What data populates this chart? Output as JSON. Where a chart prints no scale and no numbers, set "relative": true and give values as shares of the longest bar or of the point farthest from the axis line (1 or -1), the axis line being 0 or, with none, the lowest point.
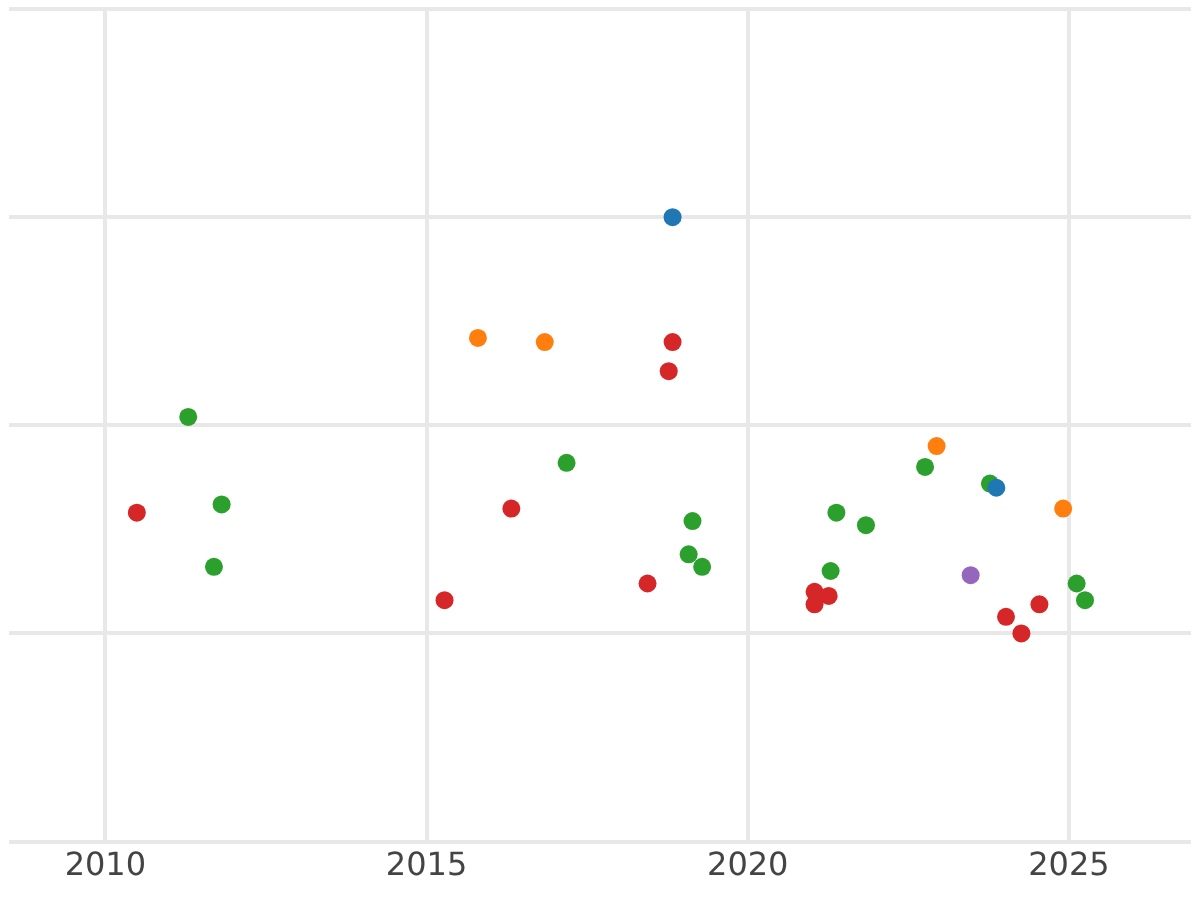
{
  "chart_data": {
    "type": "scatter",
    "relative": true,
    "grid": true,
    "legend": false,
    "marker": "circle",
    "xlim": [
      2008.5,
      2026.9
    ],
    "xticks": [
      2010,
      2015,
      2020,
      2025
    ],
    "series": [
      {
        "color": "#1f77b4",
        "x": [
          2018.83,
          2023.87
        ],
        "values": [
          1.0,
          0.35
        ]
      },
      {
        "color": "#ff7f0e",
        "x": [
          2015.8,
          2016.84,
          2022.94,
          2024.91
        ],
        "values": [
          0.71,
          0.7,
          0.45,
          0.3
        ]
      },
      {
        "color": "#d62728",
        "x": [
          2018.83,
          2018.77,
          2010.49,
          2016.32,
          2015.28,
          2018.44,
          2021.04,
          2021.26,
          2021.04,
          2024.54,
          2024.02,
          2024.26
        ],
        "values": [
          0.7,
          0.63,
          0.29,
          0.3,
          0.08,
          0.12,
          0.1,
          0.09,
          0.07,
          0.07,
          0.04,
          0
        ]
      },
      {
        "color": "#2ca02c",
        "x": [
          2011.29,
          2011.81,
          2011.69,
          2017.18,
          2019.14,
          2019.08,
          2019.29,
          2021.38,
          2021.84,
          2021.29,
          2022.76,
          2023.77,
          2025.12,
          2025.25
        ],
        "values": [
          0.52,
          0.31,
          0.16,
          0.41,
          0.27,
          0.19,
          0.16,
          0.29,
          0.26,
          0.15,
          0.4,
          0.36,
          0.12,
          0.08
        ]
      },
      {
        "color": "#9467bd",
        "x": [
          2023.47
        ],
        "values": [
          0.14
        ]
      }
    ]
  }
}
